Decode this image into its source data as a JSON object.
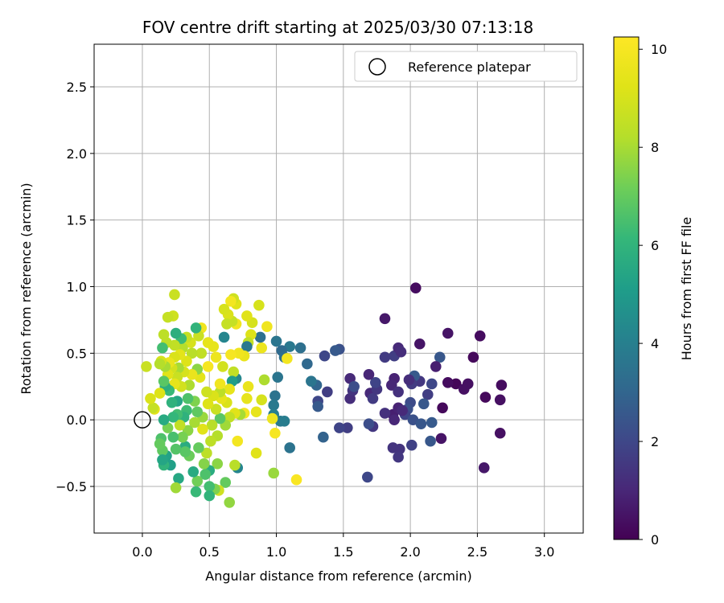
{
  "chart_data": {
    "type": "scatter",
    "title": "FOV centre drift starting at 2025/03/30 07:13:18",
    "xlabel": "Angular distance from reference (arcmin)",
    "ylabel": "Rotation from reference (arcmin)",
    "xlim": [
      -0.36,
      3.29
    ],
    "ylim": [
      -0.85,
      2.82
    ],
    "xticks": [
      0.0,
      0.5,
      1.0,
      1.5,
      2.0,
      2.5,
      3.0
    ],
    "xtick_labels": [
      "0.0",
      "0.5",
      "1.0",
      "1.5",
      "2.0",
      "2.5",
      "3.0"
    ],
    "yticks": [
      -0.5,
      0.0,
      0.5,
      1.0,
      1.5,
      2.0,
      2.5
    ],
    "ytick_labels": [
      "−0.5",
      "0.0",
      "0.5",
      "1.0",
      "1.5",
      "2.0",
      "2.5"
    ],
    "grid": true,
    "legend": {
      "position": "top-right",
      "entries": [
        "Reference platepar"
      ]
    },
    "reference_point": {
      "x": 0.0,
      "y": 0.0,
      "label": "Reference platepar"
    },
    "colorbar": {
      "label": "Hours from first FF file",
      "colormap": "viridis",
      "range": [
        0,
        10.25
      ],
      "ticks": [
        0,
        2,
        4,
        6,
        8,
        10
      ],
      "tick_labels": [
        "0",
        "2",
        "4",
        "6",
        "8",
        "10"
      ]
    },
    "points": [
      {
        "x": 2.04,
        "y": 0.99,
        "h": 0.3
      },
      {
        "x": 1.81,
        "y": 0.76,
        "h": 0.6
      },
      {
        "x": 2.52,
        "y": 0.63,
        "h": 0.3
      },
      {
        "x": 2.28,
        "y": 0.65,
        "h": 0.5
      },
      {
        "x": 2.07,
        "y": 0.57,
        "h": 0.5
      },
      {
        "x": 2.47,
        "y": 0.47,
        "h": 0.2
      },
      {
        "x": 2.22,
        "y": 0.47,
        "h": 2.5
      },
      {
        "x": 2.68,
        "y": 0.26,
        "h": 0.3
      },
      {
        "x": 2.43,
        "y": 0.27,
        "h": 0.4
      },
      {
        "x": 2.34,
        "y": 0.27,
        "h": 0.1
      },
      {
        "x": 2.28,
        "y": 0.28,
        "h": 0.3
      },
      {
        "x": 2.4,
        "y": 0.23,
        "h": 0.4
      },
      {
        "x": 2.56,
        "y": 0.17,
        "h": 0.2
      },
      {
        "x": 2.67,
        "y": 0.15,
        "h": 0.4
      },
      {
        "x": 2.24,
        "y": 0.09,
        "h": 0.2
      },
      {
        "x": 2.67,
        "y": -0.1,
        "h": 0.4
      },
      {
        "x": 2.55,
        "y": -0.36,
        "h": 0.6
      },
      {
        "x": 2.23,
        "y": -0.14,
        "h": 0.5
      },
      {
        "x": 2.15,
        "y": -0.16,
        "h": 2.5
      },
      {
        "x": 2.16,
        "y": -0.02,
        "h": 2.6
      },
      {
        "x": 2.19,
        "y": 0.4,
        "h": 0.8
      },
      {
        "x": 2.16,
        "y": 0.27,
        "h": 2.0
      },
      {
        "x": 2.13,
        "y": 0.19,
        "h": 1.7
      },
      {
        "x": 2.1,
        "y": 0.12,
        "h": 2.5
      },
      {
        "x": 2.07,
        "y": 0.29,
        "h": 1.5
      },
      {
        "x": 2.03,
        "y": 0.33,
        "h": 2.6
      },
      {
        "x": 2.01,
        "y": 0.27,
        "h": 1.6
      },
      {
        "x": 1.99,
        "y": 0.3,
        "h": 1.2
      },
      {
        "x": 2.0,
        "y": 0.13,
        "h": 2.1
      },
      {
        "x": 1.98,
        "y": 0.08,
        "h": 2.3
      },
      {
        "x": 1.96,
        "y": 0.04,
        "h": 1.9
      },
      {
        "x": 2.02,
        "y": 0.0,
        "h": 2.3
      },
      {
        "x": 2.08,
        "y": -0.03,
        "h": 2.5
      },
      {
        "x": 2.01,
        "y": -0.19,
        "h": 1.8
      },
      {
        "x": 1.92,
        "y": -0.22,
        "h": 1.4
      },
      {
        "x": 1.91,
        "y": -0.28,
        "h": 1.5
      },
      {
        "x": 1.87,
        "y": -0.21,
        "h": 1.4
      },
      {
        "x": 1.87,
        "y": 0.04,
        "h": 0.8
      },
      {
        "x": 1.88,
        "y": 0.0,
        "h": 1.0
      },
      {
        "x": 1.91,
        "y": 0.09,
        "h": 0.9
      },
      {
        "x": 1.94,
        "y": 0.07,
        "h": 1.1
      },
      {
        "x": 1.88,
        "y": 0.31,
        "h": 0.9
      },
      {
        "x": 1.86,
        "y": 0.26,
        "h": 1.0
      },
      {
        "x": 1.91,
        "y": 0.21,
        "h": 1.3
      },
      {
        "x": 1.88,
        "y": 0.48,
        "h": 1.7
      },
      {
        "x": 1.91,
        "y": 0.54,
        "h": 1.1
      },
      {
        "x": 1.93,
        "y": 0.51,
        "h": 1.2
      },
      {
        "x": 1.81,
        "y": 0.47,
        "h": 1.6
      },
      {
        "x": 1.81,
        "y": 0.05,
        "h": 1.3
      },
      {
        "x": 1.72,
        "y": -0.05,
        "h": 1.5
      },
      {
        "x": 1.69,
        "y": -0.03,
        "h": 2.2
      },
      {
        "x": 1.68,
        "y": -0.43,
        "h": 2.0
      },
      {
        "x": 1.7,
        "y": 0.2,
        "h": 1.1
      },
      {
        "x": 1.72,
        "y": 0.16,
        "h": 1.6
      },
      {
        "x": 1.75,
        "y": 0.23,
        "h": 1.5
      },
      {
        "x": 1.74,
        "y": 0.28,
        "h": 1.9
      },
      {
        "x": 1.69,
        "y": 0.34,
        "h": 1.0
      },
      {
        "x": 1.55,
        "y": 0.31,
        "h": 1.1
      },
      {
        "x": 1.55,
        "y": 0.16,
        "h": 1.2
      },
      {
        "x": 1.57,
        "y": 0.22,
        "h": 1.4
      },
      {
        "x": 1.58,
        "y": 0.25,
        "h": 2.2
      },
      {
        "x": 1.53,
        "y": -0.06,
        "h": 1.7
      },
      {
        "x": 1.47,
        "y": -0.06,
        "h": 1.9
      },
      {
        "x": 1.47,
        "y": 0.53,
        "h": 2.3
      },
      {
        "x": 1.44,
        "y": 0.52,
        "h": 2.6
      },
      {
        "x": 1.36,
        "y": 0.48,
        "h": 2.0
      },
      {
        "x": 1.38,
        "y": 0.21,
        "h": 1.7
      },
      {
        "x": 1.35,
        "y": -0.13,
        "h": 2.9
      },
      {
        "x": 1.31,
        "y": 0.14,
        "h": 2.0
      },
      {
        "x": 1.31,
        "y": 0.1,
        "h": 2.6
      },
      {
        "x": 1.3,
        "y": 0.26,
        "h": 3.0
      },
      {
        "x": 1.26,
        "y": 0.29,
        "h": 3.6
      },
      {
        "x": 1.23,
        "y": 0.42,
        "h": 3.1
      },
      {
        "x": 1.18,
        "y": 0.54,
        "h": 3.4
      },
      {
        "x": 1.1,
        "y": 0.55,
        "h": 3.7
      },
      {
        "x": 1.1,
        "y": -0.21,
        "h": 3.5
      },
      {
        "x": 1.04,
        "y": 0.52,
        "h": 3.2
      },
      {
        "x": 1.06,
        "y": 0.47,
        "h": 3.4
      },
      {
        "x": 1.08,
        "y": 0.46,
        "h": 9.9
      },
      {
        "x": 1.0,
        "y": 0.59,
        "h": 3.6
      },
      {
        "x": 1.01,
        "y": 0.32,
        "h": 3.6
      },
      {
        "x": 1.03,
        "y": -0.01,
        "h": 3.8
      },
      {
        "x": 1.06,
        "y": -0.01,
        "h": 3.9
      },
      {
        "x": 0.99,
        "y": 0.18,
        "h": 3.5
      },
      {
        "x": 0.98,
        "y": 0.11,
        "h": 3.8
      },
      {
        "x": 0.98,
        "y": 0.04,
        "h": 4.0
      },
      {
        "x": 0.97,
        "y": 0.01,
        "h": 9.7
      },
      {
        "x": 0.99,
        "y": -0.1,
        "h": 10.0
      },
      {
        "x": 0.98,
        "y": -0.4,
        "h": 7.8
      },
      {
        "x": 1.15,
        "y": -0.45,
        "h": 10.1
      },
      {
        "x": 0.93,
        "y": 0.7,
        "h": 9.8
      },
      {
        "x": 0.91,
        "y": 0.3,
        "h": 8.1
      },
      {
        "x": 0.89,
        "y": 0.15,
        "h": 9.0
      },
      {
        "x": 0.89,
        "y": 0.54,
        "h": 9.7
      },
      {
        "x": 0.88,
        "y": 0.62,
        "h": 3.4
      },
      {
        "x": 0.87,
        "y": 0.86,
        "h": 9.0
      },
      {
        "x": 0.85,
        "y": 0.06,
        "h": 9.5
      },
      {
        "x": 0.85,
        "y": -0.25,
        "h": 9.3
      },
      {
        "x": 0.82,
        "y": 0.73,
        "h": 9.0
      },
      {
        "x": 0.81,
        "y": 0.64,
        "h": 9.2
      },
      {
        "x": 0.79,
        "y": 0.58,
        "h": 8.5
      },
      {
        "x": 0.79,
        "y": 0.25,
        "h": 9.6
      },
      {
        "x": 0.78,
        "y": 0.78,
        "h": 9.3
      },
      {
        "x": 0.78,
        "y": 0.16,
        "h": 9.5
      },
      {
        "x": 0.78,
        "y": 0.55,
        "h": 3.7
      },
      {
        "x": 0.76,
        "y": 0.05,
        "h": 9.9
      },
      {
        "x": 0.76,
        "y": 0.48,
        "h": 9.6
      },
      {
        "x": 0.73,
        "y": 0.04,
        "h": 8.0
      },
      {
        "x": 0.72,
        "y": 0.5,
        "h": 9.8
      },
      {
        "x": 0.71,
        "y": -0.16,
        "h": 9.9
      },
      {
        "x": 0.71,
        "y": -0.36,
        "h": 4.2
      },
      {
        "x": 0.7,
        "y": 0.87,
        "h": 9.3
      },
      {
        "x": 0.7,
        "y": 0.72,
        "h": 9.8
      },
      {
        "x": 0.7,
        "y": 0.31,
        "h": 4.3
      },
      {
        "x": 0.69,
        "y": 0.05,
        "h": 9.3
      },
      {
        "x": 0.69,
        "y": -0.34,
        "h": 8.3
      },
      {
        "x": 0.68,
        "y": 0.91,
        "h": 8.8
      },
      {
        "x": 0.68,
        "y": 0.36,
        "h": 8.5
      },
      {
        "x": 0.67,
        "y": 0.29,
        "h": 5.1
      },
      {
        "x": 0.67,
        "y": 0.74,
        "h": 8.6
      },
      {
        "x": 0.66,
        "y": 0.89,
        "h": 9.9
      },
      {
        "x": 0.66,
        "y": 0.49,
        "h": 10.0
      },
      {
        "x": 0.65,
        "y": 0.23,
        "h": 9.5
      },
      {
        "x": 0.65,
        "y": 0.02,
        "h": 8.5
      },
      {
        "x": 0.65,
        "y": -0.62,
        "h": 7.7
      },
      {
        "x": 0.64,
        "y": 0.79,
        "h": 9.1
      },
      {
        "x": 0.63,
        "y": 0.72,
        "h": 8.6
      },
      {
        "x": 0.63,
        "y": 0.13,
        "h": 9.1
      },
      {
        "x": 0.62,
        "y": -0.04,
        "h": 7.9
      },
      {
        "x": 0.62,
        "y": -0.47,
        "h": 7.0
      },
      {
        "x": 0.61,
        "y": 0.83,
        "h": 9.0
      },
      {
        "x": 0.61,
        "y": 0.62,
        "h": 4.2
      },
      {
        "x": 0.6,
        "y": 0.4,
        "h": 8.9
      },
      {
        "x": 0.59,
        "y": 0.16,
        "h": 9.5
      },
      {
        "x": 0.58,
        "y": 0.21,
        "h": 8.4
      },
      {
        "x": 0.58,
        "y": 0.27,
        "h": 9.8
      },
      {
        "x": 0.58,
        "y": 0.01,
        "h": 6.8
      },
      {
        "x": 0.57,
        "y": -0.53,
        "h": 8.8
      },
      {
        "x": 0.56,
        "y": -0.12,
        "h": 8.2
      },
      {
        "x": 0.56,
        "y": -0.33,
        "h": 7.6
      },
      {
        "x": 0.55,
        "y": 0.47,
        "h": 9.7
      },
      {
        "x": 0.55,
        "y": 0.08,
        "h": 8.7
      },
      {
        "x": 0.54,
        "y": -0.52,
        "h": 7.4
      },
      {
        "x": 0.53,
        "y": 0.55,
        "h": 9.5
      },
      {
        "x": 0.53,
        "y": 0.18,
        "h": 9.1
      },
      {
        "x": 0.52,
        "y": -0.04,
        "h": 8.3
      },
      {
        "x": 0.51,
        "y": -0.16,
        "h": 8.4
      },
      {
        "x": 0.5,
        "y": -0.38,
        "h": 5.7
      },
      {
        "x": 0.5,
        "y": -0.5,
        "h": 6.4
      },
      {
        "x": 0.5,
        "y": -0.57,
        "h": 6.0
      },
      {
        "x": 0.49,
        "y": 0.58,
        "h": 9.5
      },
      {
        "x": 0.49,
        "y": 0.4,
        "h": 10.0
      },
      {
        "x": 0.49,
        "y": 0.12,
        "h": 9.2
      },
      {
        "x": 0.48,
        "y": 0.21,
        "h": 8.8
      },
      {
        "x": 0.48,
        "y": -0.25,
        "h": 8.4
      },
      {
        "x": 0.47,
        "y": -0.41,
        "h": 6.6
      },
      {
        "x": 0.46,
        "y": -0.33,
        "h": 7.5
      },
      {
        "x": 0.45,
        "y": 0.02,
        "h": 7.8
      },
      {
        "x": 0.45,
        "y": -0.07,
        "h": 9.3
      },
      {
        "x": 0.44,
        "y": 0.69,
        "h": 9.8
      },
      {
        "x": 0.44,
        "y": 0.5,
        "h": 8.5
      },
      {
        "x": 0.43,
        "y": 0.32,
        "h": 9.4
      },
      {
        "x": 0.42,
        "y": 0.63,
        "h": 8.7
      },
      {
        "x": 0.42,
        "y": -0.21,
        "h": 7.0
      },
      {
        "x": 0.41,
        "y": 0.38,
        "h": 7.6
      },
      {
        "x": 0.41,
        "y": 0.06,
        "h": 6.9
      },
      {
        "x": 0.41,
        "y": -0.46,
        "h": 7.2
      },
      {
        "x": 0.4,
        "y": -0.54,
        "h": 6.2
      },
      {
        "x": 0.4,
        "y": 0.69,
        "h": 6.0
      },
      {
        "x": 0.39,
        "y": 0.14,
        "h": 7.4
      },
      {
        "x": 0.39,
        "y": -0.02,
        "h": 8.0
      },
      {
        "x": 0.38,
        "y": -0.39,
        "h": 5.6
      },
      {
        "x": 0.37,
        "y": 0.5,
        "h": 8.3
      },
      {
        "x": 0.37,
        "y": 0.34,
        "h": 9.6
      },
      {
        "x": 0.36,
        "y": 0.58,
        "h": 9.0
      },
      {
        "x": 0.35,
        "y": 0.26,
        "h": 8.1
      },
      {
        "x": 0.35,
        "y": -0.27,
        "h": 7.1
      },
      {
        "x": 0.34,
        "y": 0.16,
        "h": 6.6
      },
      {
        "x": 0.34,
        "y": -0.08,
        "h": 7.6
      },
      {
        "x": 0.33,
        "y": 0.62,
        "h": 8.6
      },
      {
        "x": 0.33,
        "y": 0.44,
        "h": 9.2
      },
      {
        "x": 0.33,
        "y": 0.07,
        "h": 6.3
      },
      {
        "x": 0.32,
        "y": -0.2,
        "h": 5.7
      },
      {
        "x": 0.32,
        "y": -0.24,
        "h": 6.8
      },
      {
        "x": 0.31,
        "y": 0.36,
        "h": 9.0
      },
      {
        "x": 0.31,
        "y": 0.02,
        "h": 5.9
      },
      {
        "x": 0.3,
        "y": 0.54,
        "h": 8.2
      },
      {
        "x": 0.3,
        "y": -0.13,
        "h": 7.3
      },
      {
        "x": 0.29,
        "y": 0.61,
        "h": 6.3
      },
      {
        "x": 0.29,
        "y": 0.25,
        "h": 8.9
      },
      {
        "x": 0.28,
        "y": 0.49,
        "h": 9.4
      },
      {
        "x": 0.28,
        "y": -0.04,
        "h": 8.5
      },
      {
        "x": 0.27,
        "y": -0.44,
        "h": 5.5
      },
      {
        "x": 0.27,
        "y": 0.39,
        "h": 8.0
      },
      {
        "x": 0.26,
        "y": 0.32,
        "h": 8.7
      },
      {
        "x": 0.26,
        "y": 0.14,
        "h": 5.4
      },
      {
        "x": 0.26,
        "y": 0.04,
        "h": 6.4
      },
      {
        "x": 0.25,
        "y": 0.65,
        "h": 5.8
      },
      {
        "x": 0.25,
        "y": -0.22,
        "h": 6.7
      },
      {
        "x": 0.25,
        "y": -0.51,
        "h": 7.9
      },
      {
        "x": 0.24,
        "y": 0.94,
        "h": 8.7
      },
      {
        "x": 0.24,
        "y": 0.56,
        "h": 8.5
      },
      {
        "x": 0.24,
        "y": 0.47,
        "h": 9.1
      },
      {
        "x": 0.24,
        "y": 0.27,
        "h": 9.5
      },
      {
        "x": 0.23,
        "y": 0.78,
        "h": 8.8
      },
      {
        "x": 0.23,
        "y": 0.02,
        "h": 6.1
      },
      {
        "x": 0.23,
        "y": -0.13,
        "h": 6.5
      },
      {
        "x": 0.22,
        "y": 0.39,
        "h": 8.9
      },
      {
        "x": 0.22,
        "y": 0.13,
        "h": 5.9
      },
      {
        "x": 0.21,
        "y": -0.34,
        "h": 5.2
      },
      {
        "x": 0.2,
        "y": 0.43,
        "h": 9.6
      },
      {
        "x": 0.2,
        "y": 0.22,
        "h": 6.2
      },
      {
        "x": 0.19,
        "y": 0.77,
        "h": 8.6
      },
      {
        "x": 0.19,
        "y": 0.34,
        "h": 9.3
      },
      {
        "x": 0.19,
        "y": -0.06,
        "h": 7.3
      },
      {
        "x": 0.18,
        "y": 0.58,
        "h": 8.4
      },
      {
        "x": 0.18,
        "y": -0.27,
        "h": 5.3
      },
      {
        "x": 0.17,
        "y": 0.25,
        "h": 5.8
      },
      {
        "x": 0.17,
        "y": 0.4,
        "h": 8.0
      },
      {
        "x": 0.16,
        "y": 0.64,
        "h": 8.4
      },
      {
        "x": 0.16,
        "y": 0.29,
        "h": 6.8
      },
      {
        "x": 0.16,
        "y": 0.0,
        "h": 5.6
      },
      {
        "x": 0.16,
        "y": -0.34,
        "h": 6.0
      },
      {
        "x": 0.15,
        "y": 0.54,
        "h": 6.4
      },
      {
        "x": 0.15,
        "y": -0.23,
        "h": 6.9
      },
      {
        "x": 0.15,
        "y": -0.3,
        "h": 5.4
      },
      {
        "x": 0.14,
        "y": 0.44,
        "h": 9.0
      },
      {
        "x": 0.14,
        "y": -0.14,
        "h": 6.6
      },
      {
        "x": 0.13,
        "y": 0.42,
        "h": 8.2
      },
      {
        "x": 0.13,
        "y": 0.2,
        "h": 9.2
      },
      {
        "x": 0.13,
        "y": -0.18,
        "h": 7.0
      },
      {
        "x": 0.09,
        "y": 0.08,
        "h": 9.4
      },
      {
        "x": 0.08,
        "y": 0.09,
        "h": 8.6
      },
      {
        "x": 0.06,
        "y": 0.16,
        "h": 9.1
      },
      {
        "x": 0.03,
        "y": 0.4,
        "h": 8.7
      }
    ]
  }
}
